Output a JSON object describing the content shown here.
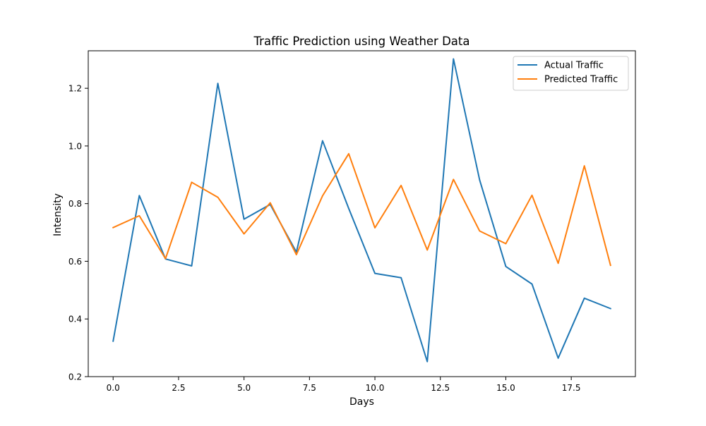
{
  "chart_data": {
    "type": "line",
    "title": "Traffic Prediction using Weather Data",
    "xlabel": "Days",
    "ylabel": "Intensity",
    "xlim": [
      -0.95,
      19.95
    ],
    "ylim": [
      0.2,
      1.33
    ],
    "xticks": [
      0.0,
      2.5,
      5.0,
      7.5,
      10.0,
      12.5,
      15.0,
      17.5
    ],
    "xtick_labels": [
      "0.0",
      "2.5",
      "5.0",
      "7.5",
      "10.0",
      "12.5",
      "15.0",
      "17.5"
    ],
    "yticks": [
      0.2,
      0.4,
      0.6,
      0.8,
      1.0,
      1.2
    ],
    "ytick_labels": [
      "0.2",
      "0.4",
      "0.6",
      "0.8",
      "1.0",
      "1.2"
    ],
    "grid": false,
    "legend_position": "top-right",
    "x": [
      0,
      1,
      2,
      3,
      4,
      5,
      6,
      7,
      8,
      9,
      10,
      11,
      12,
      13,
      14,
      15,
      16,
      17,
      18,
      19
    ],
    "series": [
      {
        "name": "Actual Traffic",
        "color": "#1f77b4",
        "values": [
          0.323,
          0.828,
          0.608,
          0.584,
          1.217,
          0.746,
          0.797,
          0.632,
          1.018,
          0.783,
          0.558,
          0.543,
          0.252,
          1.302,
          0.882,
          0.582,
          0.521,
          0.264,
          0.472,
          0.436
        ]
      },
      {
        "name": "Predicted Traffic",
        "color": "#ff7f0e",
        "values": [
          0.717,
          0.758,
          0.609,
          0.874,
          0.822,
          0.695,
          0.803,
          0.623,
          0.827,
          0.973,
          0.716,
          0.863,
          0.639,
          0.884,
          0.705,
          0.661,
          0.829,
          0.593,
          0.931,
          0.586
        ]
      }
    ]
  }
}
